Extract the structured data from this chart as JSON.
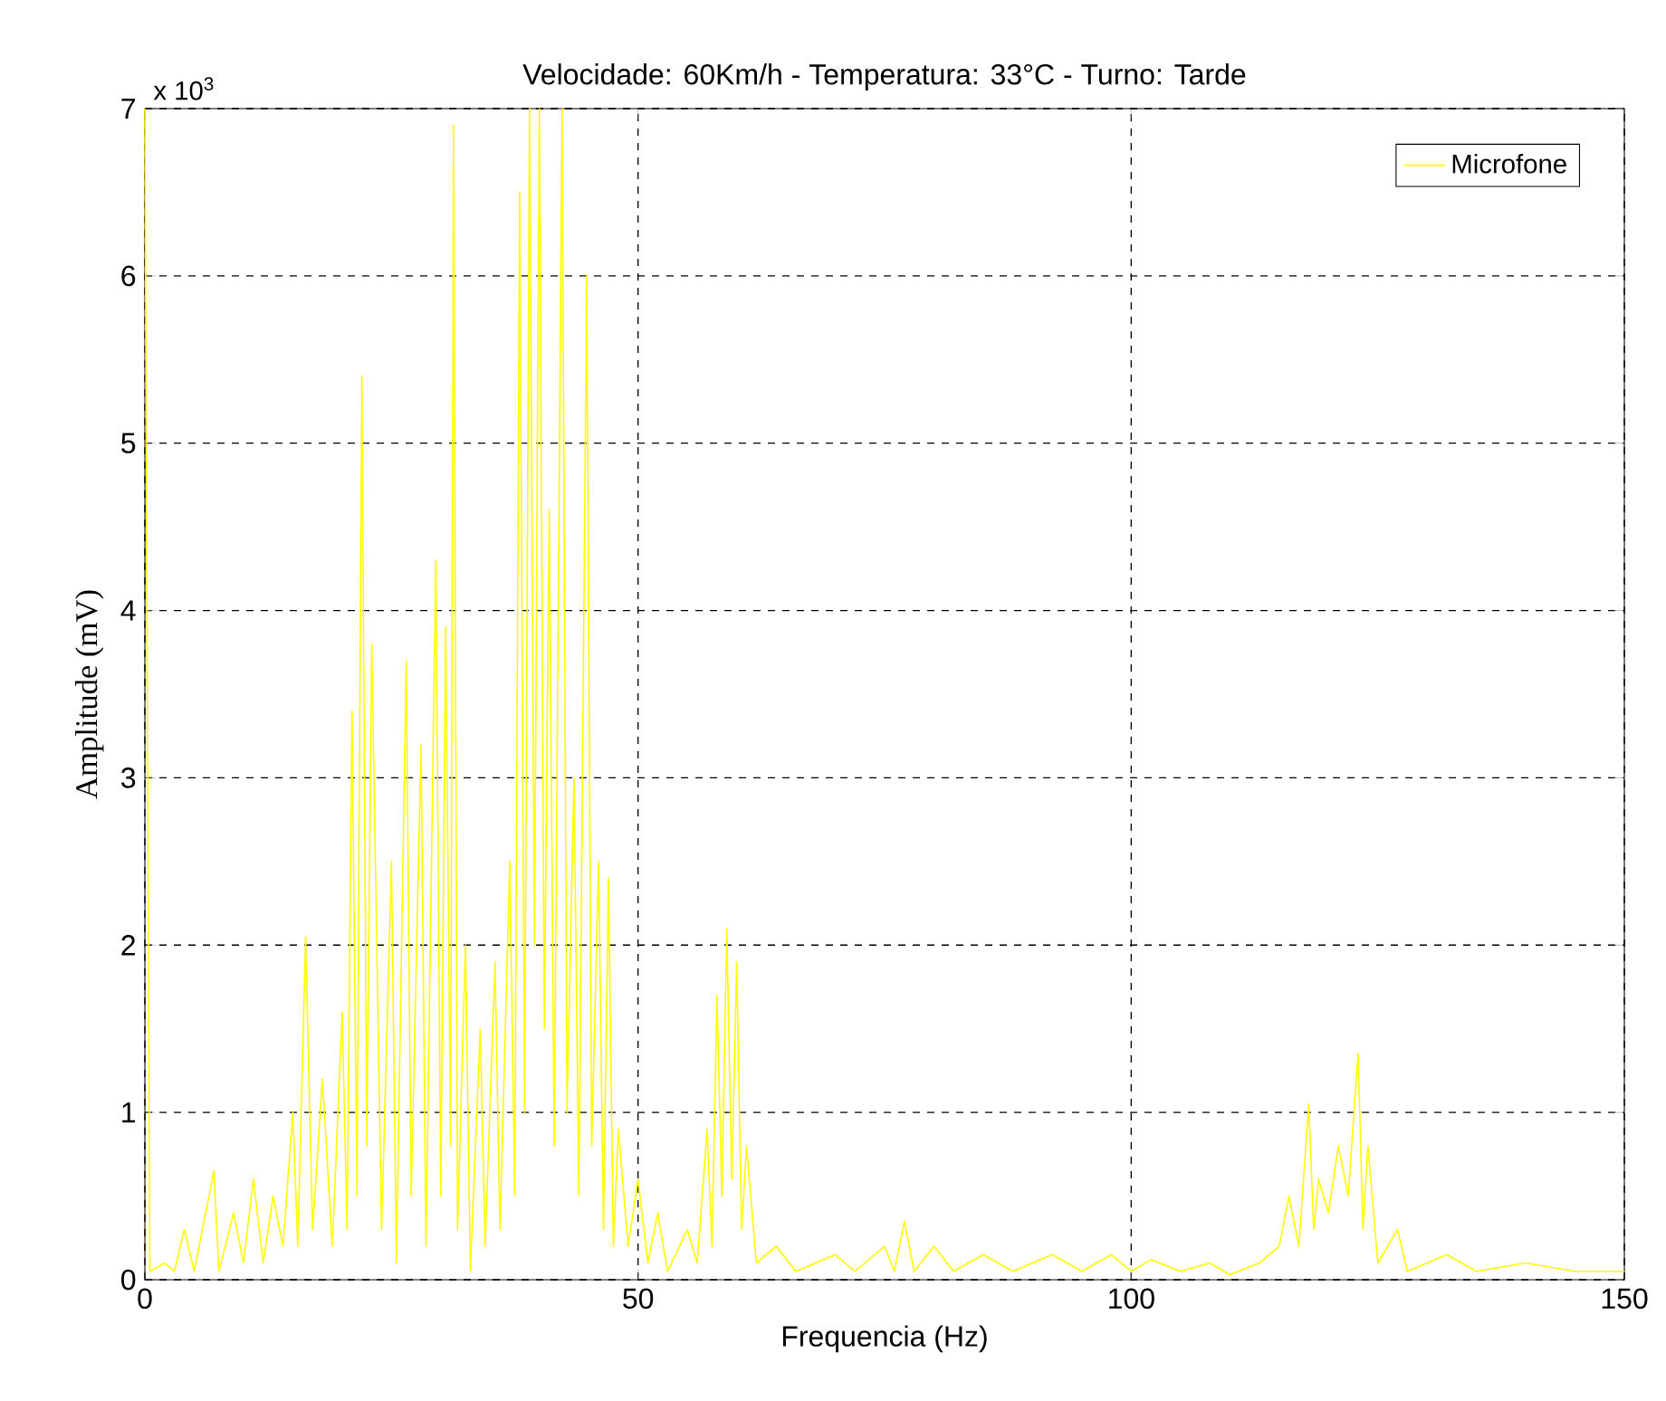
{
  "chart_data": {
    "type": "line",
    "title": "Velocidade: 60Km/h  - Temperatura: 33°C - Turno: Tarde",
    "xlabel": "Frequencia (Hz)",
    "ylabel": "Amplitude (mV)",
    "annotations": [
      "x 10$^{3}$"
    ],
    "xlim": [
      0,
      150
    ],
    "ylim": [
      0,
      7
    ],
    "xticks": [
      0,
      50,
      100,
      150
    ],
    "yticks": [
      0,
      1,
      2,
      3,
      4,
      5,
      6,
      7
    ],
    "grid": true,
    "legend": "top right",
    "series": [
      {
        "name": "Microfone",
        "color": "#ffff00",
        "x": [
          0,
          0.5,
          2,
          3,
          4,
          5,
          7,
          7.5,
          9,
          10,
          11,
          12,
          13,
          14,
          15,
          15.5,
          16.3,
          17,
          18,
          19,
          20,
          20.5,
          21,
          21.5,
          22,
          22.5,
          23,
          24,
          25,
          25.5,
          26.5,
          27,
          28,
          28.5,
          29.5,
          30,
          30.5,
          31,
          31.3,
          31.7,
          32.5,
          33,
          34,
          34.5,
          35.5,
          36,
          37,
          37.5,
          38,
          38.5,
          39,
          39.5,
          40,
          40.5,
          41,
          41.5,
          42.3,
          42.8,
          43.5,
          44,
          44.8,
          45.3,
          46,
          46.5,
          47,
          47.5,
          48,
          49,
          50,
          51,
          52,
          53,
          55,
          56,
          57,
          57.5,
          58,
          58.5,
          59,
          59.5,
          60,
          60.5,
          61,
          62,
          64,
          66,
          70,
          72,
          75,
          76,
          77,
          78,
          80,
          82,
          85,
          88,
          92,
          95,
          98,
          100,
          102,
          105,
          108,
          110,
          113,
          115,
          116,
          117,
          118,
          118.5,
          119,
          120,
          121,
          122,
          123,
          123.5,
          124,
          125,
          127,
          128,
          132,
          135,
          140,
          145,
          150
        ],
        "values": [
          7,
          0.05,
          0.1,
          0.05,
          0.3,
          0.05,
          0.65,
          0.05,
          0.4,
          0.1,
          0.6,
          0.1,
          0.5,
          0.2,
          1.0,
          0.2,
          2.05,
          0.3,
          1.2,
          0.2,
          1.6,
          0.3,
          3.4,
          0.5,
          5.4,
          0.8,
          3.8,
          0.3,
          2.5,
          0.1,
          3.7,
          0.5,
          3.2,
          0.2,
          4.3,
          0.5,
          3.9,
          0.8,
          6.9,
          0.3,
          2.0,
          0.05,
          1.5,
          0.2,
          1.9,
          0.3,
          2.5,
          0.5,
          6.5,
          1.0,
          7,
          2.0,
          7,
          1.5,
          4.6,
          0.8,
          7,
          1.0,
          3.0,
          0.5,
          6.0,
          0.8,
          2.5,
          0.3,
          2.4,
          0.2,
          0.9,
          0.2,
          0.6,
          0.1,
          0.4,
          0.05,
          0.3,
          0.1,
          0.9,
          0.2,
          1.7,
          0.5,
          2.1,
          0.6,
          1.9,
          0.3,
          0.8,
          0.1,
          0.2,
          0.05,
          0.15,
          0.05,
          0.2,
          0.05,
          0.35,
          0.05,
          0.2,
          0.05,
          0.15,
          0.05,
          0.15,
          0.05,
          0.15,
          0.05,
          0.12,
          0.05,
          0.1,
          0.03,
          0.1,
          0.2,
          0.5,
          0.2,
          1.05,
          0.3,
          0.6,
          0.4,
          0.8,
          0.5,
          1.35,
          0.3,
          0.8,
          0.1,
          0.3,
          0.05,
          0.15,
          0.05,
          0.1,
          0.05,
          0.05
        ]
      }
    ]
  }
}
